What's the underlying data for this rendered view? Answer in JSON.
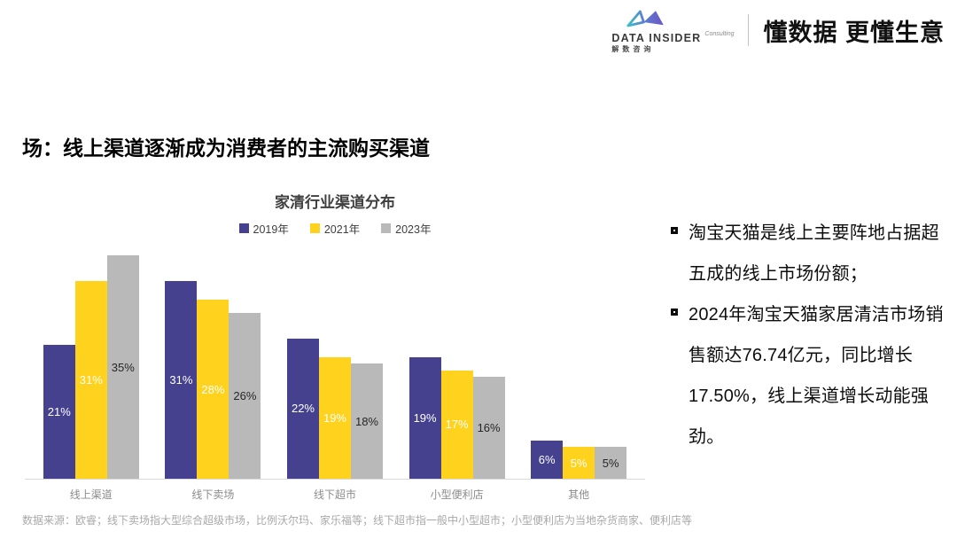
{
  "header": {
    "brand_name": "DATA INSIDER",
    "brand_consulting": "Consulting",
    "brand_cn": "解数咨询",
    "tagline": "懂数据 更懂生意"
  },
  "title": "场：线上渠道逐渐成为消费者的主流购买渠道",
  "chart_data": {
    "type": "bar",
    "title": "家清行业渠道分布",
    "categories": [
      "线上渠道",
      "线下卖场",
      "线下超市",
      "小型便利店",
      "其他"
    ],
    "series": [
      {
        "name": "2019年",
        "color": "#45418f",
        "label_color": "#ffffff",
        "values": [
          21,
          31,
          22,
          19,
          6
        ]
      },
      {
        "name": "2021年",
        "color": "#ffd21e",
        "label_color": "#ffffff",
        "values": [
          31,
          28,
          19,
          17,
          5
        ]
      },
      {
        "name": "2023年",
        "color": "#b9b9b9",
        "label_color": "#262626",
        "values": [
          35,
          26,
          18,
          16,
          5
        ]
      }
    ],
    "unit": "%",
    "ylim": [
      0,
      37
    ],
    "grid": false,
    "legend_position": "top",
    "data_labels": true,
    "xlabel": "",
    "ylabel": ""
  },
  "insights": {
    "bullets": [
      "淘宝天猫是线上主要阵地占据超五成的线上市场份额；",
      "2024年淘宝天猫家居清洁市场销售额达76.74亿元，同比增长17.50%，线上渠道增长动能强劲。"
    ]
  },
  "footnote": "数据来源：欧睿；线下卖场指大型综合超级市场，比例沃尔玛、家乐福等；线下超市指一般中小型超市；小型便利店为当地杂货商家、便利店等",
  "colors": {
    "navy": "#45418f",
    "yellow": "#ffd21e",
    "gray": "#b9b9b9",
    "axis": "#d9d9d9"
  }
}
